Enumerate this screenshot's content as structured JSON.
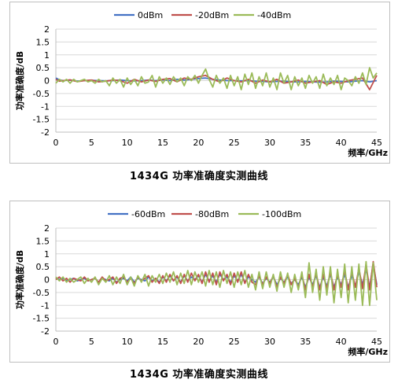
{
  "chart_data": [
    {
      "type": "line",
      "caption": "1434G 功率准确度实测曲线",
      "ylabel": "功率准确度/dB",
      "xlabel": "频率/GHz",
      "xlim": [
        0,
        45
      ],
      "ylim": [
        -2,
        2
      ],
      "xticks": [
        "0",
        "5",
        "10",
        "15",
        "20",
        "25",
        "30",
        "35",
        "40",
        "45"
      ],
      "yticks": [
        "2",
        "1.5",
        "1",
        "0.5",
        "0",
        "-0.5",
        "-1",
        "-1.5",
        "-2"
      ],
      "grid": true,
      "legend": "top",
      "series": [
        {
          "name": "0dBm",
          "color": "#4472C4",
          "x": [
            0,
            0.5,
            1,
            2,
            3,
            4,
            5,
            6,
            7,
            8,
            9,
            10,
            11,
            12,
            13,
            14,
            15,
            16,
            17,
            18,
            19,
            20,
            21,
            22,
            23,
            24,
            25,
            26,
            27,
            28,
            29,
            30,
            31,
            32,
            33,
            34,
            35,
            36,
            37,
            38,
            39,
            40,
            41,
            42,
            43,
            44,
            45
          ],
          "y": [
            0.1,
            0.03,
            0.0,
            0.02,
            -0.02,
            0.0,
            0.01,
            0.0,
            -0.01,
            0.0,
            0.02,
            0.0,
            -0.01,
            0.0,
            0.02,
            0.0,
            0.03,
            0.0,
            0.05,
            0.02,
            0.05,
            0.08,
            0.1,
            0.05,
            0.02,
            0.0,
            0.0,
            -0.01,
            0.0,
            -0.02,
            -0.03,
            -0.05,
            -0.03,
            -0.02,
            -0.05,
            -0.05,
            -0.03,
            -0.05,
            -0.06,
            -0.05,
            -0.02,
            -0.03,
            -0.05,
            -0.02,
            0.0,
            -0.05,
            0.0
          ]
        },
        {
          "name": "-20dBm",
          "color": "#C0504D",
          "x": [
            0,
            0.5,
            1,
            2,
            3,
            4,
            5,
            6,
            7,
            8,
            9,
            10,
            11,
            12,
            13,
            14,
            15,
            16,
            17,
            18,
            19,
            20,
            21,
            22,
            23,
            24,
            25,
            26,
            27,
            28,
            29,
            30,
            31,
            32,
            33,
            34,
            35,
            36,
            37,
            38,
            39,
            40,
            41,
            42,
            43,
            44,
            45
          ],
          "y": [
            0.05,
            -0.02,
            0.0,
            0.03,
            -0.04,
            0.0,
            0.02,
            -0.05,
            -0.02,
            0.02,
            0.0,
            -0.1,
            0.05,
            -0.05,
            0.02,
            -0.03,
            0.05,
            0.08,
            -0.05,
            0.1,
            0.05,
            0.15,
            0.2,
            0.05,
            -0.05,
            0.1,
            0.0,
            -0.05,
            0.05,
            -0.1,
            0.02,
            -0.05,
            0.05,
            -0.1,
            -0.05,
            0.02,
            -0.1,
            -0.05,
            0.0,
            -0.15,
            -0.05,
            -0.1,
            0.0,
            0.05,
            0.1,
            -0.35,
            0.2
          ]
        },
        {
          "name": "-40dBm",
          "color": "#9BBB59",
          "x": [
            0,
            0.5,
            1,
            1.5,
            2,
            2.5,
            3,
            3.5,
            4,
            4.5,
            5,
            5.5,
            6,
            6.5,
            7,
            7.5,
            8,
            8.5,
            9,
            9.5,
            10,
            10.5,
            11,
            11.5,
            12,
            12.5,
            13,
            13.5,
            14,
            14.5,
            15,
            15.5,
            16,
            16.5,
            17,
            17.5,
            18,
            18.5,
            19,
            19.5,
            20,
            20.5,
            21,
            21.5,
            22,
            22.5,
            23,
            23.5,
            24,
            24.5,
            25,
            25.5,
            26,
            26.5,
            27,
            27.5,
            28,
            28.5,
            29,
            29.5,
            30,
            30.5,
            31,
            31.5,
            32,
            32.5,
            33,
            33.5,
            34,
            34.5,
            35,
            35.5,
            36,
            36.5,
            37,
            37.5,
            38,
            38.5,
            39,
            39.5,
            40,
            40.5,
            41,
            41.5,
            42,
            42.5,
            43,
            43.5,
            44,
            44.5,
            45
          ],
          "y": [
            -0.1,
            0.05,
            -0.05,
            0.05,
            -0.1,
            0.05,
            -0.05,
            0.0,
            0.05,
            -0.05,
            0.0,
            -0.1,
            0.05,
            -0.05,
            0.0,
            -0.2,
            0.1,
            -0.1,
            0.05,
            -0.25,
            0.1,
            -0.15,
            0.05,
            -0.2,
            0.15,
            -0.1,
            -0.05,
            0.2,
            -0.25,
            0.15,
            -0.1,
            0.1,
            -0.15,
            0.15,
            -0.05,
            0.1,
            -0.2,
            0.15,
            0.0,
            0.2,
            -0.1,
            0.2,
            0.45,
            0.05,
            -0.25,
            0.2,
            -0.1,
            0.1,
            -0.3,
            0.2,
            -0.2,
            0.15,
            -0.35,
            0.25,
            -0.15,
            0.3,
            -0.3,
            0.15,
            -0.2,
            0.3,
            -0.25,
            0.1,
            -0.35,
            0.3,
            -0.1,
            0.2,
            -0.35,
            0.15,
            -0.2,
            0.1,
            -0.3,
            0.2,
            -0.1,
            0.15,
            -0.3,
            0.25,
            -0.2,
            0.1,
            -0.15,
            0.2,
            -0.35,
            0.1,
            0.0,
            -0.2,
            0.15,
            -0.1,
            0.3,
            -0.15,
            0.5,
            0.1,
            0.3
          ]
        }
      ]
    },
    {
      "type": "line",
      "caption": "1434G 功率准确度实测曲线",
      "ylabel": "功率准确度/dB",
      "xlabel": "频率/GHz",
      "xlim": [
        0,
        45
      ],
      "ylim": [
        -2,
        2
      ],
      "xticks": [
        "0",
        "5",
        "10",
        "15",
        "20",
        "25",
        "30",
        "35",
        "40",
        "45"
      ],
      "yticks": [
        "2",
        "1.5",
        "1",
        "0.5",
        "0",
        "-0.5",
        "-1",
        "-1.5",
        "-2"
      ],
      "grid": true,
      "legend": "top",
      "series": [
        {
          "name": "-60dBm",
          "color": "#4472C4",
          "x": [
            0,
            0.5,
            1,
            1.5,
            2,
            2.5,
            3,
            3.5,
            4,
            4.5,
            5,
            5.5,
            6,
            6.5,
            7,
            7.5,
            8,
            8.5,
            9,
            9.5,
            10,
            10.5,
            11,
            11.5,
            12,
            12.5,
            13,
            13.5,
            14,
            14.5,
            15,
            15.5,
            16,
            16.5,
            17,
            17.5,
            18,
            18.5,
            19,
            19.5,
            20,
            20.5,
            21,
            21.5,
            22,
            22.5,
            23,
            23.5,
            24,
            24.5,
            25,
            25.5,
            26,
            26.5,
            27,
            27.5,
            28,
            28.5,
            29,
            29.5,
            30,
            30.5,
            31,
            31.5,
            32,
            32.5,
            33,
            33.5,
            34,
            34.5,
            35,
            35.5,
            36,
            36.5,
            37,
            37.5,
            38,
            38.5,
            39,
            39.5,
            40,
            40.5,
            41,
            41.5,
            42,
            42.5,
            43,
            43.5,
            44,
            44.5,
            45
          ],
          "y": [
            0.05,
            0.0,
            0.05,
            -0.05,
            0.0,
            0.05,
            -0.05,
            0.0,
            0.05,
            -0.05,
            0.0,
            0.05,
            -0.1,
            0.05,
            0.0,
            -0.05,
            0.05,
            -0.1,
            0.0,
            0.05,
            -0.05,
            0.1,
            -0.1,
            0.05,
            0.0,
            -0.05,
            0.1,
            -0.05,
            0.05,
            -0.1,
            0.1,
            -0.05,
            0.15,
            -0.05,
            0.1,
            -0.1,
            0.15,
            -0.05,
            0.1,
            0.0,
            0.15,
            -0.1,
            0.2,
            -0.05,
            0.15,
            -0.1,
            0.2,
            0.0,
            0.1,
            -0.1,
            0.15,
            -0.05,
            0.2,
            -0.1,
            0.1,
            0.0,
            -0.1,
            0.1,
            -0.15,
            0.05,
            -0.1,
            0.1,
            -0.2,
            0.05,
            -0.1,
            0.1,
            -0.15,
            0.0,
            -0.2,
            0.1,
            -0.3,
            0.1,
            -0.2,
            0.15,
            -0.3,
            0.1,
            -0.25,
            0.2,
            -0.3,
            0.1,
            -0.2,
            0.2,
            -0.3,
            0.15,
            -0.25,
            0.3,
            -0.2,
            0.4,
            -0.3,
            0.6,
            -0.2
          ]
        },
        {
          "name": "-80dBm",
          "color": "#C0504D",
          "x": [
            0,
            0.5,
            1,
            1.5,
            2,
            2.5,
            3,
            3.5,
            4,
            4.5,
            5,
            5.5,
            6,
            6.5,
            7,
            7.5,
            8,
            8.5,
            9,
            9.5,
            10,
            10.5,
            11,
            11.5,
            12,
            12.5,
            13,
            13.5,
            14,
            14.5,
            15,
            15.5,
            16,
            16.5,
            17,
            17.5,
            18,
            18.5,
            19,
            19.5,
            20,
            20.5,
            21,
            21.5,
            22,
            22.5,
            23,
            23.5,
            24,
            24.5,
            25,
            25.5,
            26,
            26.5,
            27,
            27.5,
            28,
            28.5,
            29,
            29.5,
            30,
            30.5,
            31,
            31.5,
            32,
            32.5,
            33,
            33.5,
            34,
            34.5,
            35,
            35.5,
            36,
            36.5,
            37,
            37.5,
            38,
            38.5,
            39,
            39.5,
            40,
            40.5,
            41,
            41.5,
            42,
            42.5,
            43,
            43.5,
            44,
            44.5,
            45
          ],
          "y": [
            0.0,
            0.1,
            -0.05,
            0.05,
            -0.1,
            0.05,
            0.0,
            -0.05,
            0.1,
            -0.05,
            0.0,
            0.05,
            -0.1,
            0.1,
            -0.05,
            0.0,
            0.1,
            -0.15,
            0.05,
            0.1,
            -0.1,
            0.05,
            -0.15,
            0.1,
            -0.05,
            0.05,
            0.15,
            -0.1,
            0.05,
            -0.15,
            0.15,
            -0.1,
            0.2,
            -0.05,
            0.15,
            -0.15,
            0.2,
            -0.1,
            0.25,
            -0.05,
            0.2,
            -0.15,
            0.3,
            -0.1,
            0.25,
            -0.2,
            0.3,
            -0.05,
            0.2,
            -0.2,
            0.25,
            -0.1,
            0.3,
            -0.15,
            0.2,
            -0.1,
            -0.2,
            0.15,
            -0.2,
            0.1,
            -0.15,
            0.15,
            -0.3,
            0.1,
            -0.15,
            0.2,
            -0.2,
            0.05,
            -0.3,
            0.2,
            -0.4,
            0.2,
            -0.3,
            0.25,
            -0.4,
            0.2,
            -0.35,
            0.3,
            -0.4,
            0.2,
            -0.3,
            0.35,
            -0.4,
            0.3,
            -0.3,
            0.45,
            -0.35,
            0.6,
            -0.4,
            0.7,
            -0.3
          ]
        },
        {
          "name": "-100dBm",
          "color": "#9BBB59",
          "x": [
            0,
            0.5,
            1,
            1.5,
            2,
            2.5,
            3,
            3.5,
            4,
            4.5,
            5,
            5.5,
            6,
            6.5,
            7,
            7.5,
            8,
            8.5,
            9,
            9.5,
            10,
            10.5,
            11,
            11.5,
            12,
            12.5,
            13,
            13.5,
            14,
            14.5,
            15,
            15.5,
            16,
            16.5,
            17,
            17.5,
            18,
            18.5,
            19,
            19.5,
            20,
            20.5,
            21,
            21.5,
            22,
            22.5,
            23,
            23.5,
            24,
            24.5,
            25,
            25.5,
            26,
            26.5,
            27,
            27.5,
            28,
            28.5,
            29,
            29.5,
            30,
            30.5,
            31,
            31.5,
            32,
            32.5,
            33,
            33.5,
            34,
            34.5,
            35,
            35.5,
            36,
            36.5,
            37,
            37.5,
            38,
            38.5,
            39,
            39.5,
            40,
            40.5,
            41,
            41.5,
            42,
            42.5,
            43,
            43.5,
            44,
            44.5,
            45
          ],
          "y": [
            0.1,
            -0.05,
            0.1,
            -0.1,
            0.05,
            -0.1,
            0.0,
            0.1,
            -0.15,
            0.05,
            -0.1,
            0.1,
            -0.2,
            0.05,
            -0.1,
            0.15,
            -0.2,
            0.1,
            -0.15,
            0.2,
            -0.2,
            0.1,
            -0.25,
            0.15,
            -0.1,
            0.2,
            -0.25,
            0.15,
            -0.1,
            0.2,
            -0.15,
            0.25,
            -0.1,
            0.3,
            -0.2,
            0.25,
            -0.15,
            0.35,
            -0.2,
            0.3,
            -0.1,
            0.3,
            -0.25,
            0.35,
            -0.2,
            0.3,
            -0.3,
            0.35,
            -0.15,
            0.3,
            -0.3,
            0.3,
            -0.2,
            0.35,
            -0.3,
            0.2,
            -0.4,
            0.3,
            -0.35,
            0.3,
            -0.3,
            0.2,
            -0.45,
            0.3,
            -0.3,
            0.25,
            -0.5,
            0.2,
            -0.4,
            0.3,
            -0.7,
            0.65,
            -0.5,
            0.4,
            -0.8,
            0.5,
            -0.6,
            0.5,
            -0.9,
            0.4,
            -0.7,
            0.6,
            -0.9,
            0.5,
            -0.8,
            0.6,
            -1.0,
            0.7,
            -1.0,
            0.65,
            -0.8
          ]
        }
      ]
    }
  ]
}
